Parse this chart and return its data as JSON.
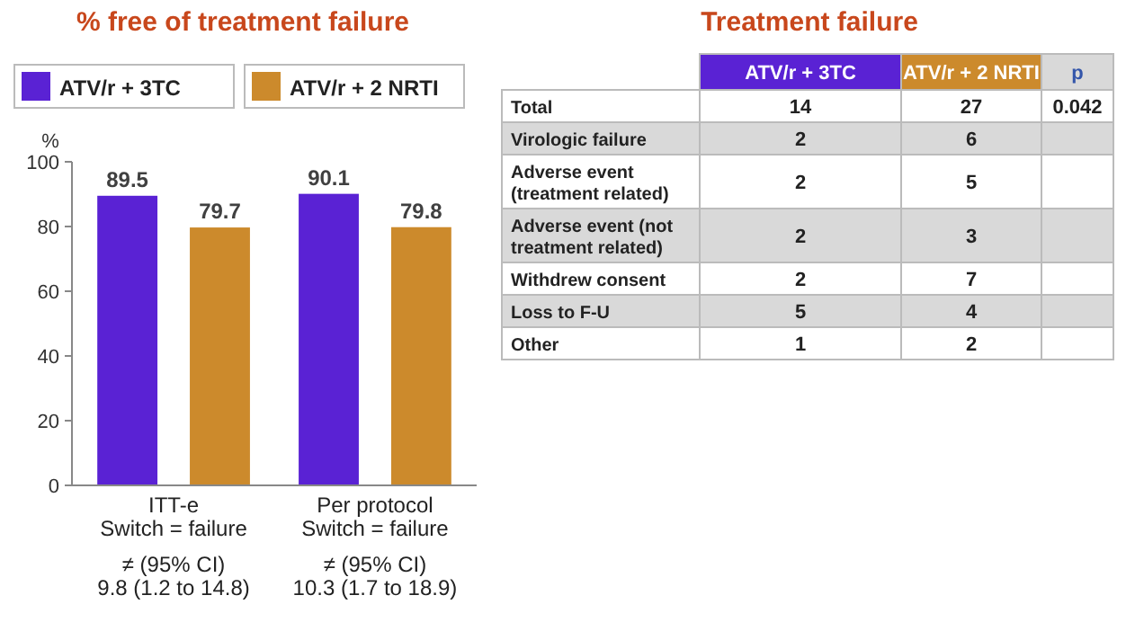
{
  "chart_data": [
    {
      "type": "bar",
      "title": "% free of treatment failure",
      "ylabel": "%",
      "categories": [
        "ITT-e\nSwitch = failure",
        "Per protocol\nSwitch = failure"
      ],
      "series": [
        {
          "name": "ATV/r + 3TC",
          "color": "#5a22d4",
          "values": [
            89.5,
            90.1
          ]
        },
        {
          "name": "ATV/r + 2 NRTI",
          "color": "#cc8a2c",
          "values": [
            79.7,
            79.8
          ]
        }
      ],
      "ylim": [
        0,
        100
      ],
      "yticks": [
        0,
        20,
        40,
        60,
        80,
        100
      ],
      "data_labels": true,
      "legend": "top",
      "annotations": [
        "≠ (95% CI)\n9.8 (1.2 to 14.8)",
        "≠ (95% CI)\n10.3 (1.7 to 18.9)"
      ]
    },
    {
      "type": "other",
      "title": "Treatment failure",
      "categories": [
        "ATV/r + 3TC",
        "ATV/r + 2 NRTI",
        "p"
      ],
      "colors": [
        "#5a22d4",
        "#cc8a2c",
        "#d9d9d9"
      ],
      "y_categories": [
        "Total",
        "Virologic failure",
        "Adverse event\n(treatment related)",
        "Adverse event (not\ntreatment related)",
        "Withdrew consent",
        "Loss to F-U",
        "Other"
      ],
      "cell_labels": [
        [
          "14",
          "27",
          "0.042"
        ],
        [
          "2",
          "6",
          null
        ],
        [
          "2",
          "5",
          null
        ],
        [
          "2",
          "3",
          null
        ],
        [
          "2",
          "7",
          null
        ],
        [
          "5",
          "4",
          null
        ],
        [
          "1",
          "2",
          null
        ]
      ]
    }
  ]
}
